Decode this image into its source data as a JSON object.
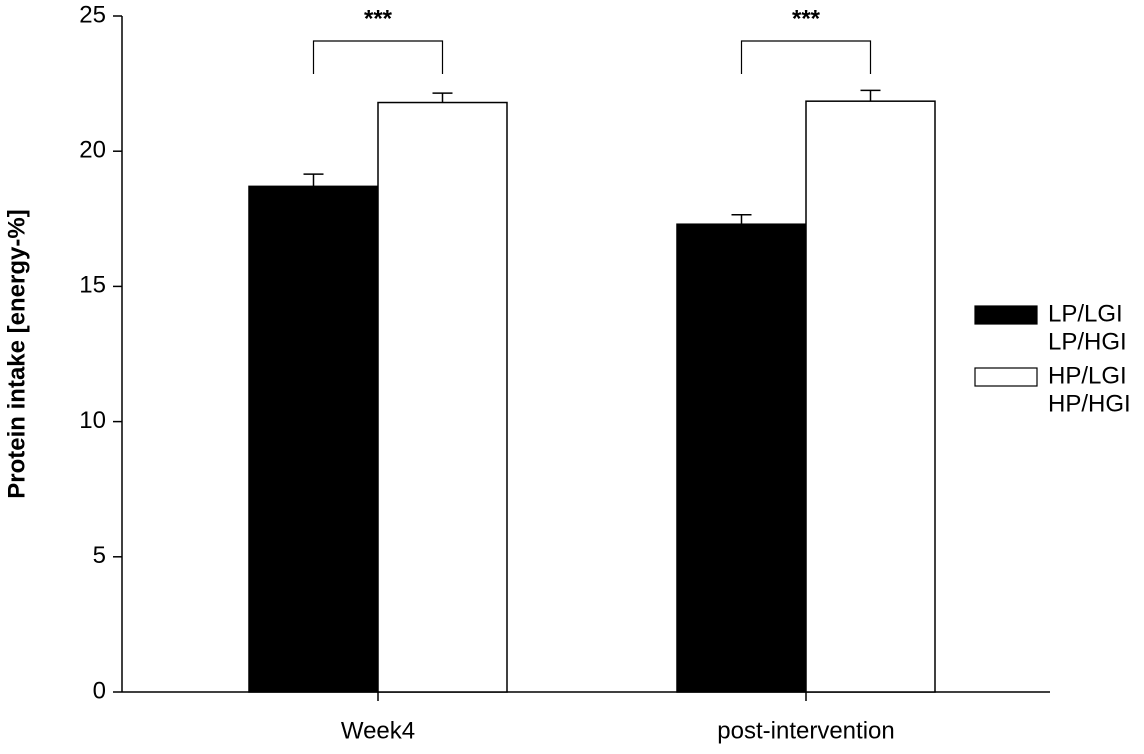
{
  "chart_data": {
    "type": "bar",
    "y_label": "Protein intake [energy-%]",
    "categories": [
      "Week4",
      "post-intervention"
    ],
    "series": [
      {
        "name": [
          "LP/LGI",
          "LP/HGI"
        ],
        "color": "#000000",
        "values": [
          18.7,
          17.3
        ],
        "errors": [
          0.45,
          0.35
        ]
      },
      {
        "name": [
          "HP/LGI",
          "HP/HGI"
        ],
        "color": "#ffffff",
        "values": [
          21.8,
          21.85
        ],
        "errors": [
          0.35,
          0.4
        ]
      }
    ],
    "annotations": [
      "***",
      "***"
    ],
    "ylim": [
      0,
      25
    ],
    "yticks": [
      0,
      5,
      10,
      15,
      20,
      25
    ],
    "legend": "right"
  }
}
